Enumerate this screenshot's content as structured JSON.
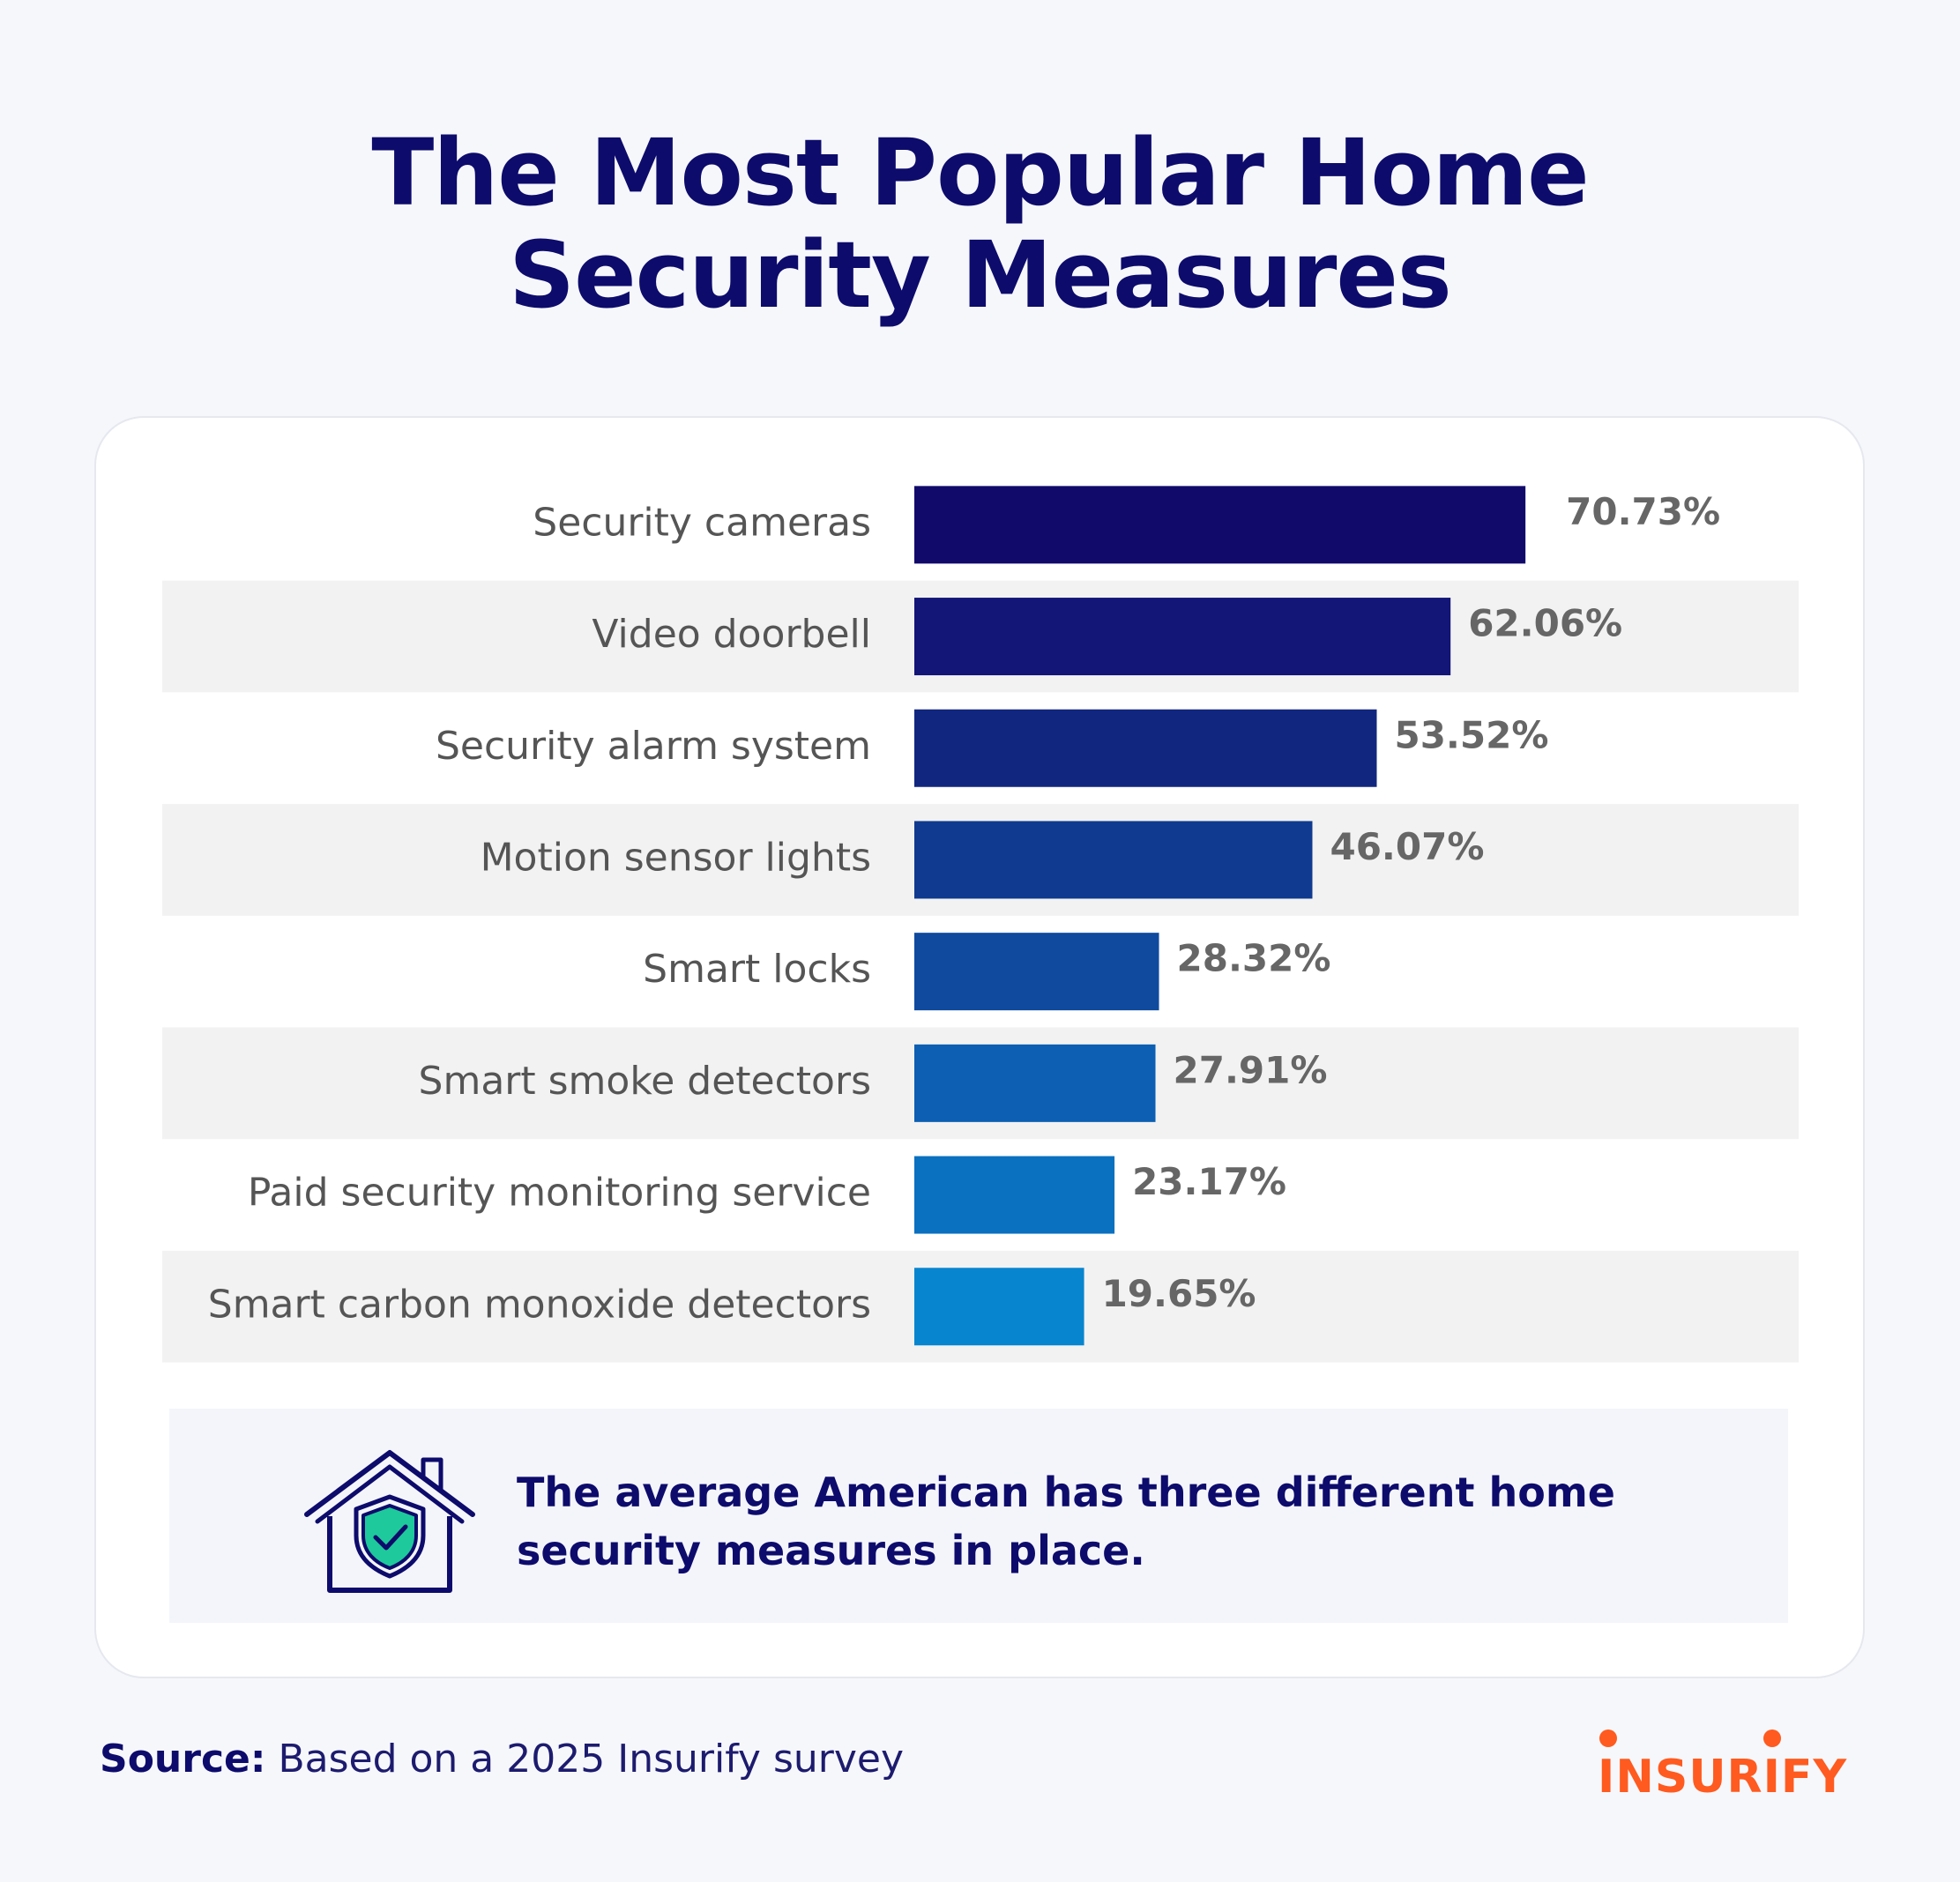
{
  "title_lines": [
    "The Most Popular Home",
    "Security Measures"
  ],
  "chart_data": {
    "type": "bar",
    "orientation": "horizontal",
    "categories": [
      "Security cameras",
      "Video doorbell",
      "Security alarm system",
      "Motion sensor lights",
      "Smart locks",
      "Smart smoke detectors",
      "Paid security monitoring service",
      "Smart carbon monoxide detectors"
    ],
    "values": [
      70.73,
      62.06,
      53.52,
      46.07,
      28.32,
      27.91,
      23.17,
      19.65
    ],
    "value_labels": [
      "70.73%",
      "62.06%",
      "53.52%",
      "46.07%",
      "28.32%",
      "27.91%",
      "23.17%",
      "19.65%"
    ],
    "bar_colors": [
      "#120a6b",
      "#131577",
      "#11277f",
      "#103a8f",
      "#0f4a9f",
      "#0c5fb2",
      "#0a70c0",
      "#0785cf"
    ],
    "xlim": [
      0,
      100
    ],
    "grid": false,
    "legend": "none"
  },
  "callout": {
    "text": "The average American has three different home security measures in place.",
    "icon": "house-shield-check-icon",
    "colors": {
      "house": "#0d0b6b",
      "shield": "#1ec99b"
    }
  },
  "source": {
    "label": "Source:",
    "text": " Based on a 2025 Insurify survey"
  },
  "logo": {
    "text": "INSURIFY",
    "color": "#ff5a1f"
  }
}
